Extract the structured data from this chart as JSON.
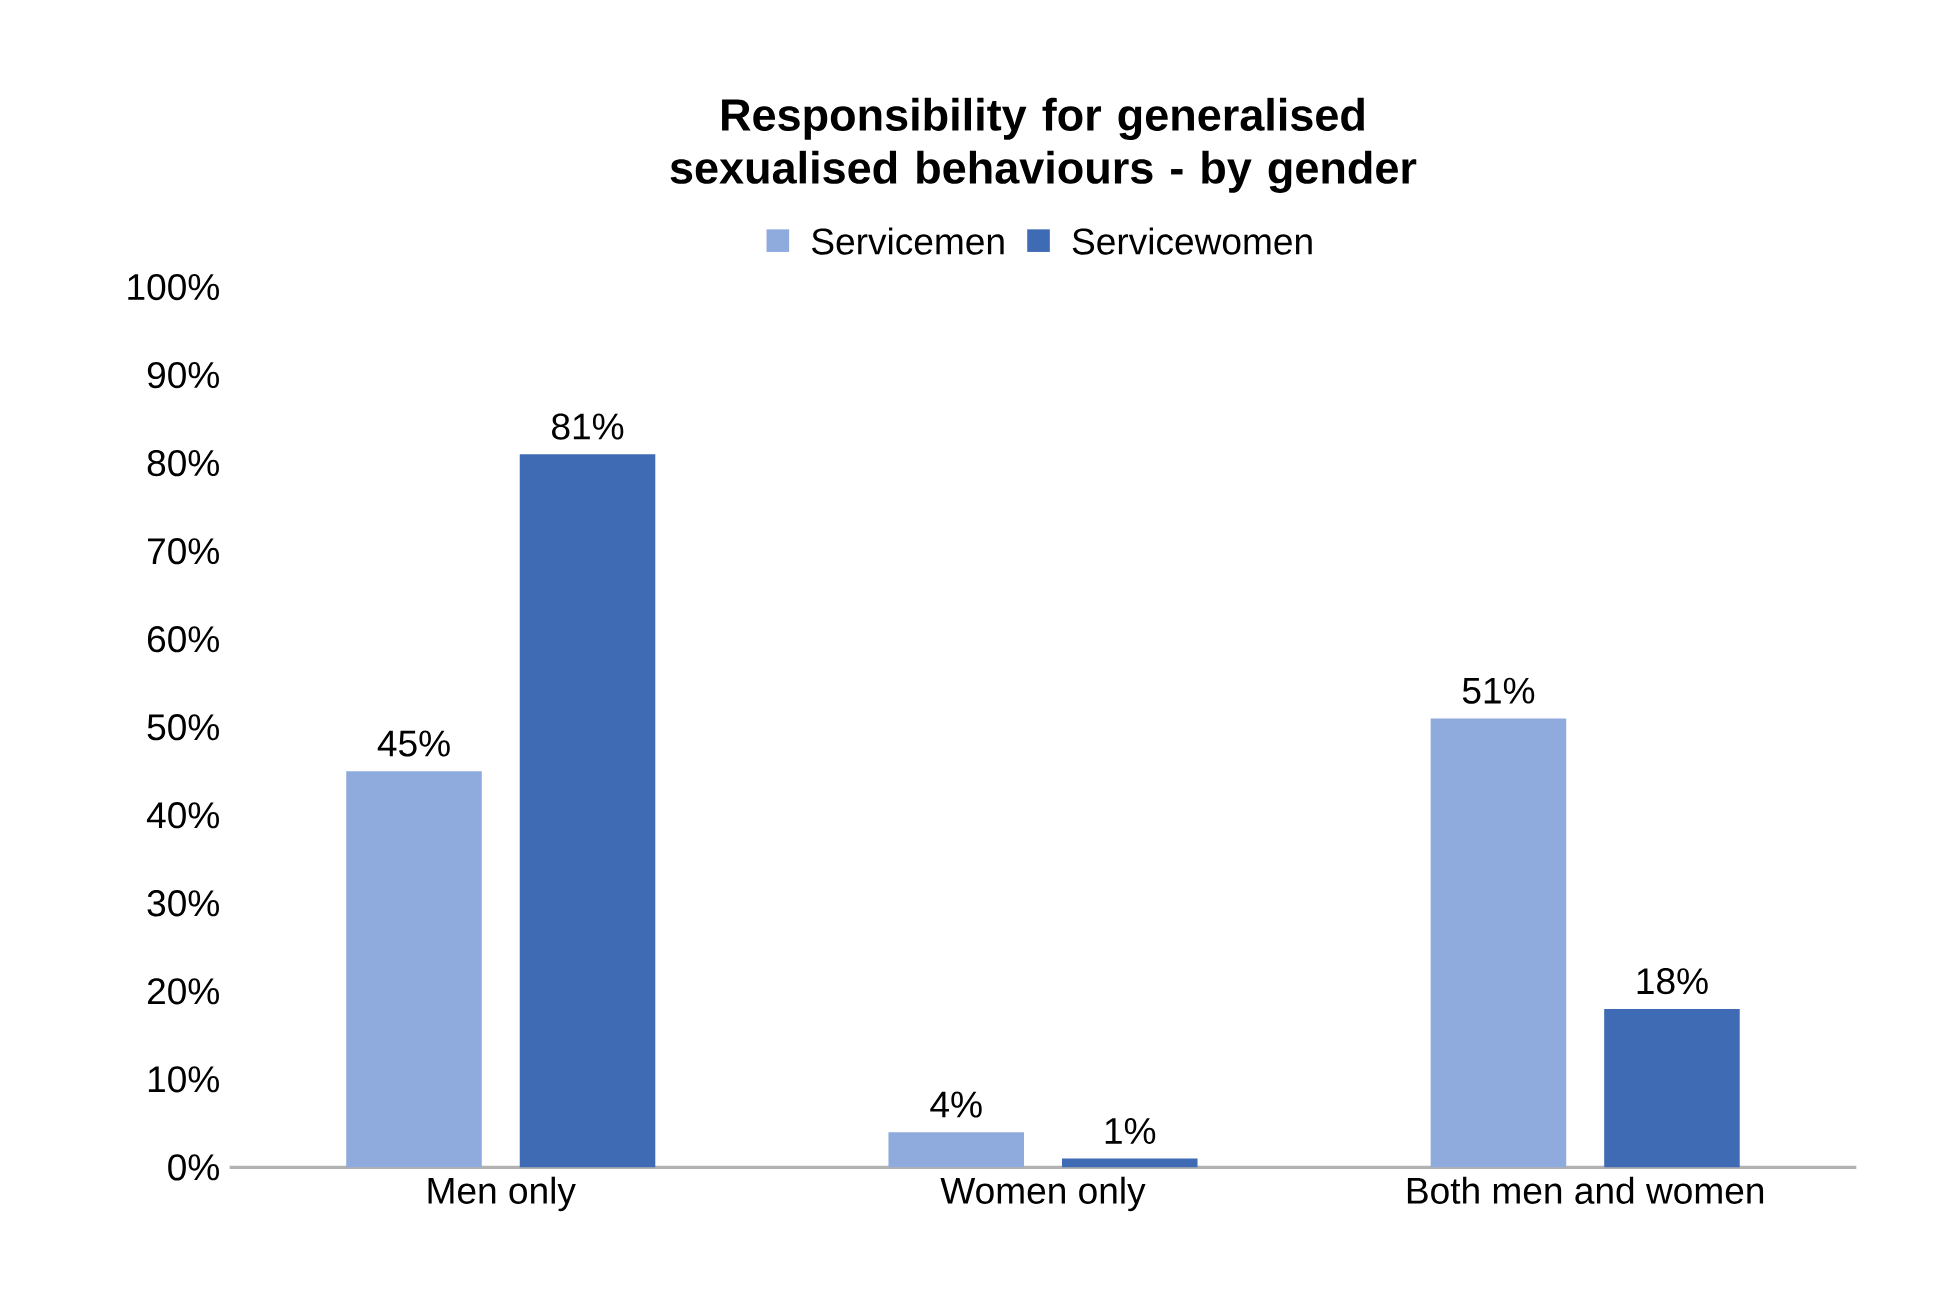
{
  "chart_data": {
    "type": "bar",
    "title": "Responsibility for generalised sexualised behaviours - by gender",
    "categories": [
      "Men only",
      "Women only",
      "Both men and women"
    ],
    "series": [
      {
        "name": "Servicemen",
        "color": "#8faadc",
        "values": [
          45,
          4,
          51
        ],
        "value_labels": [
          "45%",
          "4%",
          "51%"
        ]
      },
      {
        "name": "Servicewomen",
        "color": "#3f6bb5",
        "values": [
          81,
          1,
          18
        ],
        "value_labels": [
          "81%",
          "1%",
          "18%"
        ]
      }
    ],
    "ylim": [
      0,
      100
    ],
    "yticks": [
      {
        "value": 0,
        "label": "0%"
      },
      {
        "value": 10,
        "label": "10%"
      },
      {
        "value": 20,
        "label": "20%"
      },
      {
        "value": 30,
        "label": "30%"
      },
      {
        "value": 40,
        "label": "40%"
      },
      {
        "value": 50,
        "label": "50%"
      },
      {
        "value": 60,
        "label": "60%"
      },
      {
        "value": 70,
        "label": "70%"
      },
      {
        "value": 80,
        "label": "80%"
      },
      {
        "value": 90,
        "label": "90%"
      },
      {
        "value": 100,
        "label": "100%"
      }
    ],
    "legend": "top",
    "grid": false
  }
}
